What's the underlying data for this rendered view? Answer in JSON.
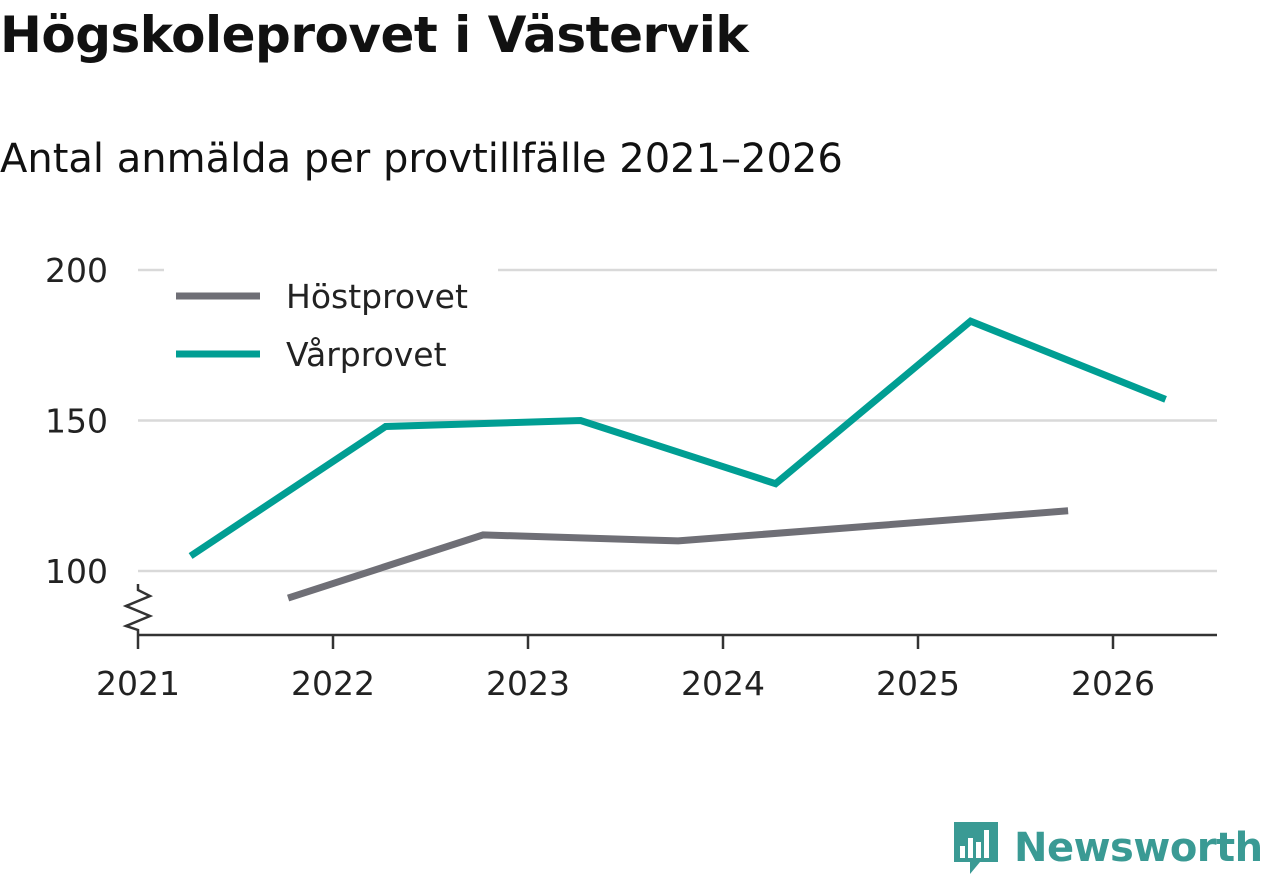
{
  "header": {
    "title": "Högskoleprovet i Västervik",
    "subtitle": "Antal anmälda per provtillfälle 2021–2026"
  },
  "brand": {
    "name": "Newsworthy",
    "color": "#3a9a94"
  },
  "colors": {
    "hostprovet": "#6f6f76",
    "varprovet": "#009e93",
    "grid": "#d9d9d9",
    "axis": "#333333",
    "text": "#222222"
  },
  "chart_data": {
    "type": "line",
    "title": "Högskoleprovet i Västervik",
    "subtitle": "Antal anmälda per provtillfälle 2021–2026",
    "xlabel": "",
    "ylabel": "",
    "xlim": [
      2021,
      2026.55
    ],
    "ylim": [
      78,
      200
    ],
    "y_axis_break": true,
    "grid": true,
    "legend_position": "top-left",
    "x_ticks": [
      {
        "value": 2021,
        "label": "2021"
      },
      {
        "value": 2022,
        "label": "2022"
      },
      {
        "value": 2023,
        "label": "2023"
      },
      {
        "value": 2024,
        "label": "2024"
      },
      {
        "value": 2025,
        "label": "2025"
      },
      {
        "value": 2026,
        "label": "2026"
      }
    ],
    "y_ticks": [
      {
        "value": 100,
        "label": "100"
      },
      {
        "value": 150,
        "label": "150"
      },
      {
        "value": 200,
        "label": "200"
      }
    ],
    "series": [
      {
        "name": "Höstprovet",
        "key": "hostprovet",
        "x": [
          2021.77,
          2022.77,
          2023.77,
          2024.77,
          2025.77
        ],
        "values": [
          91,
          112,
          110,
          115,
          120
        ]
      },
      {
        "name": "Vårprovet",
        "key": "varprovet",
        "x": [
          2021.27,
          2022.27,
          2023.27,
          2024.27,
          2025.27,
          2026.27
        ],
        "values": [
          105,
          148,
          150,
          129,
          183,
          157
        ]
      }
    ]
  }
}
